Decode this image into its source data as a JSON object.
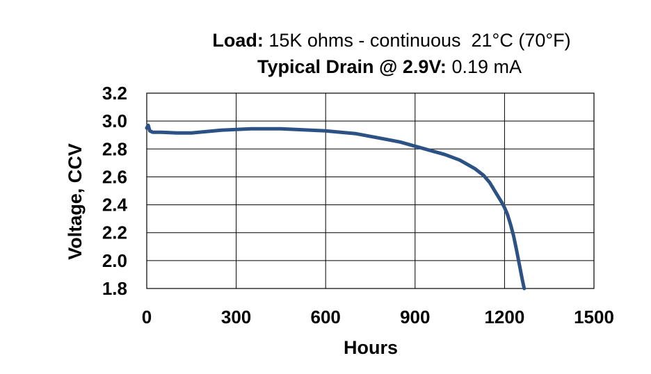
{
  "chart_data": {
    "type": "line",
    "title_line1": {
      "bold": "Load:",
      "text": " 15K ohms - continuous  21°C (70°F)"
    },
    "title_line2": {
      "bold": "Typical Drain @ 2.9V:",
      "text": " 0.19 mA"
    },
    "xlabel": "Hours",
    "ylabel": "Voltage, CCV",
    "xlim": [
      0,
      1500
    ],
    "ylim": [
      1.8,
      3.2
    ],
    "x_ticks": [
      0,
      300,
      600,
      900,
      1200,
      1500
    ],
    "x_tick_labels": [
      "0",
      "300",
      "600",
      "900",
      "1200",
      "1500"
    ],
    "y_ticks": [
      1.8,
      2.0,
      2.2,
      2.4,
      2.6,
      2.8,
      3.0,
      3.2
    ],
    "y_tick_labels": [
      "1.8",
      "2.0",
      "2.2",
      "2.4",
      "2.6",
      "2.8",
      "3.0",
      "3.2"
    ],
    "grid": true,
    "series_color": "#2c5285",
    "series": [
      {
        "x": [
          0,
          5,
          10,
          20,
          50,
          100,
          150,
          200,
          250,
          300,
          350,
          400,
          450,
          500,
          550,
          600,
          650,
          700,
          750,
          800,
          850,
          900,
          950,
          1000,
          1050,
          1100,
          1130,
          1150,
          1170,
          1190,
          1200,
          1210,
          1220,
          1230,
          1240,
          1250,
          1260,
          1266
        ],
        "y": [
          2.95,
          2.97,
          2.93,
          2.92,
          2.92,
          2.915,
          2.915,
          2.925,
          2.935,
          2.94,
          2.945,
          2.945,
          2.945,
          2.94,
          2.935,
          2.93,
          2.92,
          2.91,
          2.89,
          2.87,
          2.85,
          2.82,
          2.79,
          2.76,
          2.72,
          2.66,
          2.61,
          2.56,
          2.49,
          2.42,
          2.38,
          2.33,
          2.26,
          2.18,
          2.08,
          1.97,
          1.86,
          1.8
        ]
      }
    ]
  }
}
